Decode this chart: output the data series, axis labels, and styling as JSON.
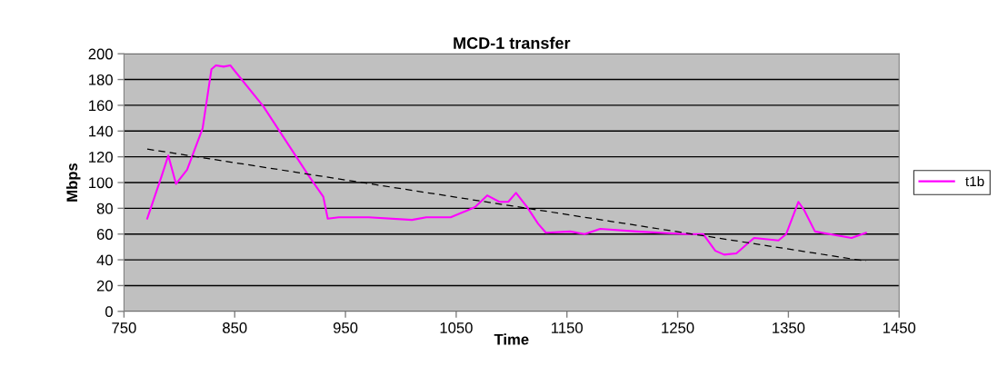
{
  "chart_data": {
    "type": "line",
    "title": "MCD-1 transfer",
    "xlabel": "Time",
    "ylabel": "Mbps",
    "xlim": [
      750,
      1450
    ],
    "xticks": [
      750,
      850,
      950,
      1050,
      1150,
      1250,
      1350,
      1450
    ],
    "ylim": [
      0,
      200
    ],
    "yticks": [
      0,
      20,
      40,
      60,
      80,
      100,
      120,
      140,
      160,
      180,
      200
    ],
    "grid": "y",
    "legend": "right",
    "marker": "none",
    "series": [
      {
        "name": "t1b",
        "color": "#ff00ff",
        "line_style": "solid",
        "x": [
          771,
          784,
          790,
          797,
          807,
          821,
          829,
          833,
          840,
          846,
          876,
          917,
          930,
          934,
          944,
          971,
          1010,
          1023,
          1045,
          1059,
          1067,
          1078,
          1089,
          1097,
          1104,
          1114,
          1124,
          1131,
          1153,
          1166,
          1180,
          1213,
          1257,
          1273,
          1284,
          1292,
          1303,
          1319,
          1341,
          1348,
          1359,
          1364,
          1374,
          1407,
          1420
        ],
        "values": [
          72,
          105,
          121,
          99,
          110,
          142,
          188,
          191,
          190,
          191,
          159,
          105,
          89,
          72,
          73,
          73,
          71,
          73,
          73,
          78,
          81,
          90,
          85,
          85,
          92,
          81,
          68,
          61,
          62,
          60,
          64,
          62,
          60,
          60,
          47,
          44,
          45,
          57,
          55,
          60,
          85,
          79,
          62,
          57,
          61
        ]
      },
      {
        "color": "#000000",
        "line_style": "dashed",
        "x": [
          771,
          1420
        ],
        "values": [
          126,
          39
        ]
      }
    ]
  }
}
